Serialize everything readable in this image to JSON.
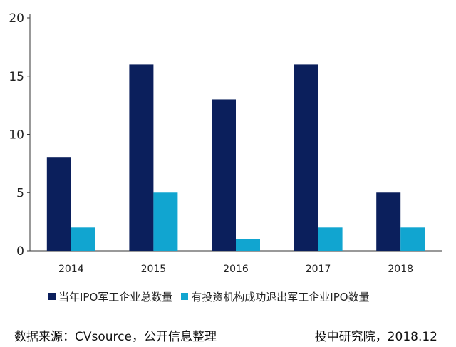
{
  "chart_data": {
    "type": "bar",
    "categories": [
      "2014",
      "2015",
      "2016",
      "2017",
      "2018"
    ],
    "series": [
      {
        "name": "当年IPO军工企业总数量",
        "values": [
          8,
          16,
          13,
          16,
          5
        ],
        "color": "#0b1f5c"
      },
      {
        "name": "有投资机构成功退出军工企业IPO数量",
        "values": [
          2,
          5,
          1,
          2,
          2
        ],
        "color": "#11a5d0"
      }
    ],
    "ylim": [
      0,
      20
    ],
    "yticks": [
      0,
      5,
      10,
      15,
      20
    ],
    "grid": false,
    "legend": "bottom"
  },
  "footer": {
    "source": "数据来源：CVsource，公开信息整理",
    "credit": "投中研究院，2018.12"
  }
}
